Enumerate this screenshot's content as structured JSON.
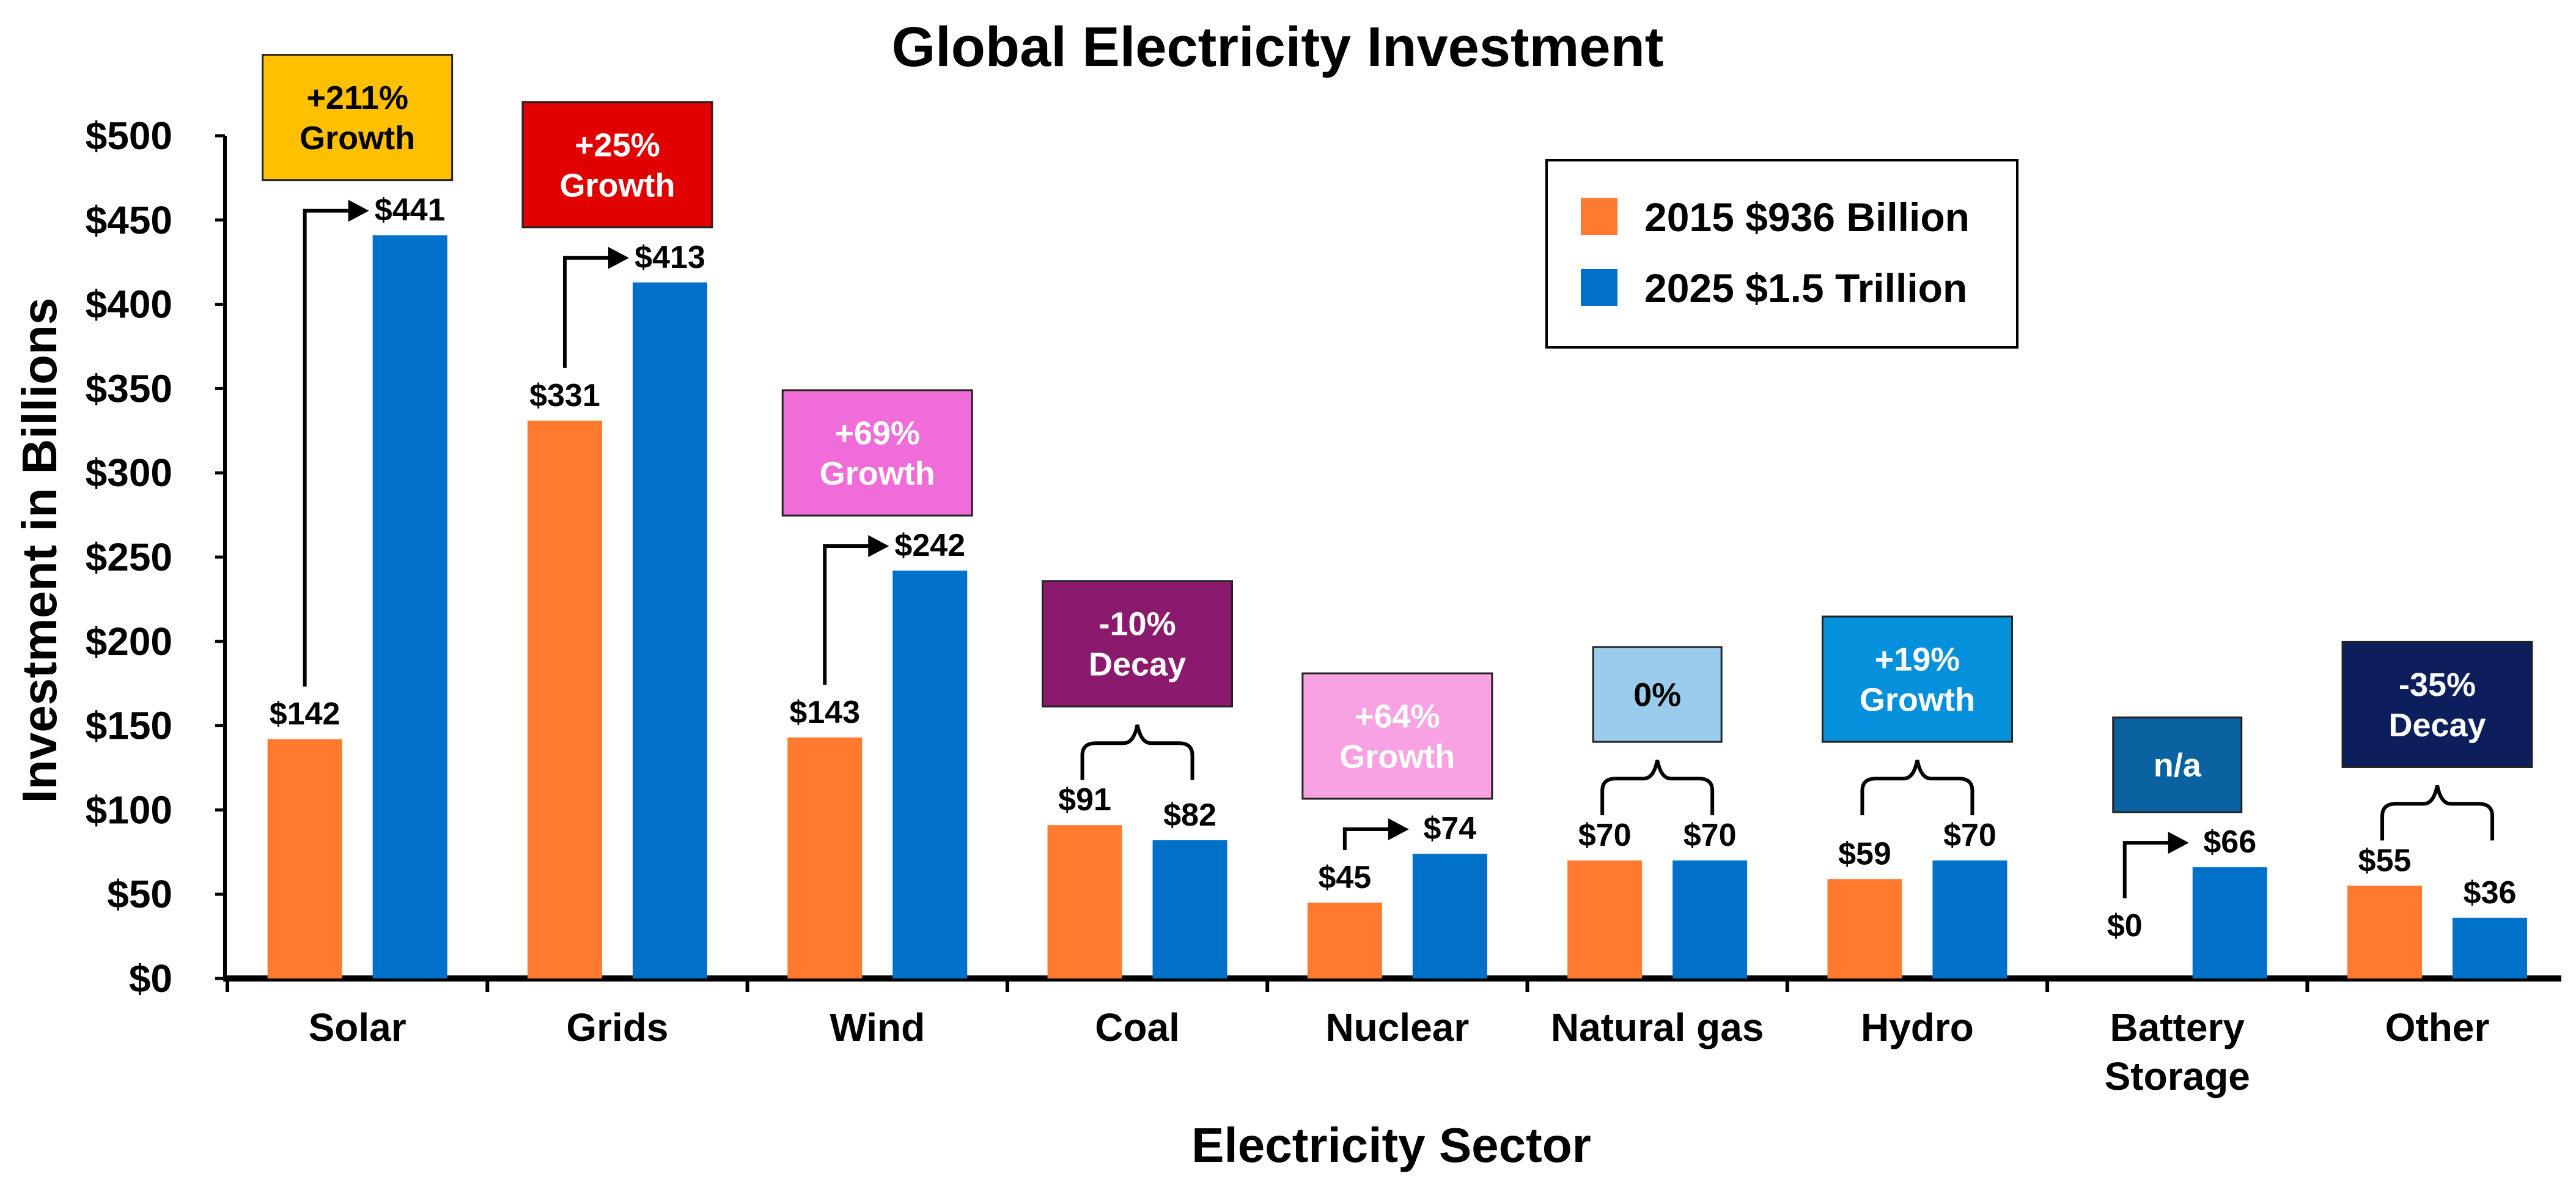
{
  "chart_data": {
    "type": "bar",
    "title": "Global Electricity Investment",
    "xlabel": "Electricity Sector",
    "ylabel": "Investment in Billions",
    "ylim": [
      0,
      500
    ],
    "yticks": [
      0,
      50,
      100,
      150,
      200,
      250,
      300,
      350,
      400,
      450,
      500
    ],
    "ytick_labels": [
      "$0",
      "$50",
      "$100",
      "$150",
      "$200",
      "$250",
      "$300",
      "$350",
      "$400",
      "$450",
      "$500"
    ],
    "grid": false,
    "legend_position": "top-right",
    "categories": [
      [
        "Solar"
      ],
      [
        "Grids"
      ],
      [
        "Wind"
      ],
      [
        "Coal"
      ],
      [
        "Nuclear"
      ],
      [
        "Natural gas"
      ],
      [
        "Hydro"
      ],
      [
        "Battery",
        "Storage"
      ],
      [
        "Other"
      ]
    ],
    "series": [
      {
        "name": "2015 $936 Billion",
        "color": "#FF7A2F",
        "values": [
          142,
          331,
          143,
          91,
          45,
          70,
          59,
          0,
          55
        ],
        "labels": [
          "$142",
          "$331",
          "$143",
          "$91",
          "$45",
          "$70",
          "$59",
          "$0",
          "$55"
        ]
      },
      {
        "name": "2025 $1.5 Trillion",
        "color": "#0070C8",
        "values": [
          441,
          413,
          242,
          82,
          74,
          70,
          70,
          66,
          36
        ],
        "labels": [
          "$441",
          "$413",
          "$242",
          "$82",
          "$74",
          "$70",
          "$70",
          "$66",
          "$36"
        ]
      }
    ],
    "annotations": [
      {
        "lines": [
          "+211%",
          "Growth"
        ],
        "bg": "#FFC000",
        "fg": "#000000",
        "connector": "arrow"
      },
      {
        "lines": [
          "+25%",
          "Growth"
        ],
        "bg": "#E00000",
        "fg": "#FFFFFF",
        "connector": "arrow"
      },
      {
        "lines": [
          "+69%",
          "Growth"
        ],
        "bg": "#F06CD8",
        "fg": "#FFFFFF",
        "connector": "arrow"
      },
      {
        "lines": [
          "-10%",
          "Decay"
        ],
        "bg": "#8B1A6E",
        "fg": "#FFFFFF",
        "connector": "brace"
      },
      {
        "lines": [
          "+64%",
          "Growth"
        ],
        "bg": "#F8A2E4",
        "fg": "#FFFFFF",
        "connector": "arrow"
      },
      {
        "lines": [
          "0%"
        ],
        "bg": "#9ACCEE",
        "fg": "#000000",
        "connector": "brace"
      },
      {
        "lines": [
          "+19%",
          "Growth"
        ],
        "bg": "#0590DC",
        "fg": "#FFFFFF",
        "connector": "brace"
      },
      {
        "lines": [
          "n/a"
        ],
        "bg": "#0A62A0",
        "fg": "#FFFFFF",
        "connector": "arrow"
      },
      {
        "lines": [
          "-35%",
          "Decay"
        ],
        "bg": "#0C1E5C",
        "fg": "#FFFFFF",
        "connector": "brace"
      }
    ]
  }
}
